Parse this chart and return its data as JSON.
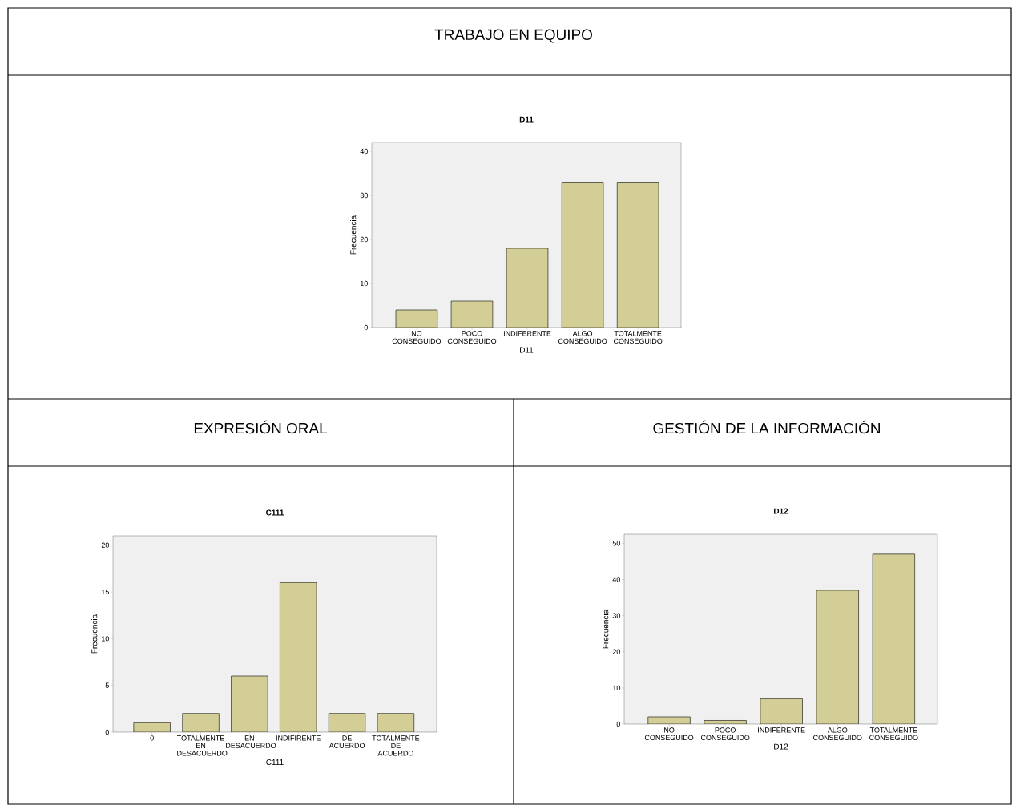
{
  "chart_data": [
    {
      "type": "bar",
      "title": "TRABAJO EN EQUIPO",
      "subtitle": "D11",
      "xlabel": "D11",
      "ylabel": "Frecuencia",
      "categories": [
        "NO CONSEGUIDO",
        "POCO CONSEGUIDO",
        "INDIFERENTE",
        "ALGO CONSEGUIDO",
        "TOTALMENTE CONSEGUIDO"
      ],
      "values": [
        4,
        6,
        18,
        33,
        33
      ],
      "color": "#d3cd96",
      "ylim": [
        0,
        42
      ],
      "yticks": [
        0,
        10,
        20,
        30,
        40
      ],
      "grid": false
    },
    {
      "type": "bar",
      "title": "EXPRESIÓN ORAL",
      "subtitle": "C111",
      "xlabel": "C111",
      "ylabel": "Frecuencia",
      "categories": [
        "0",
        "TOTALMENTE EN DESACUERDO",
        "EN DESACUERDO",
        "INDIFIRENTE",
        "DE ACUERDO",
        "TOTALMENTE DE ACUERDO"
      ],
      "values": [
        1,
        2,
        6,
        16,
        2,
        2
      ],
      "color": "#d3cd96",
      "ylim": [
        0,
        21
      ],
      "yticks": [
        0,
        5,
        10,
        15,
        20
      ],
      "grid": false
    },
    {
      "type": "bar",
      "title": "GESTIÓN DE LA INFORMACIÓN",
      "subtitle": "D12",
      "xlabel": "D12",
      "ylabel": "Frecuencia",
      "categories": [
        "NO CONSEGUIDO",
        "POCO CONSEGUIDO",
        "INDIFERENTE",
        "ALGO CONSEGUIDO",
        "TOTALMENTE CONSEGUIDO"
      ],
      "values": [
        2,
        1,
        7,
        37,
        47
      ],
      "color": "#d3cd96",
      "ylim": [
        0,
        52.5
      ],
      "yticks": [
        0,
        10,
        20,
        30,
        40,
        50
      ],
      "grid": false
    }
  ]
}
